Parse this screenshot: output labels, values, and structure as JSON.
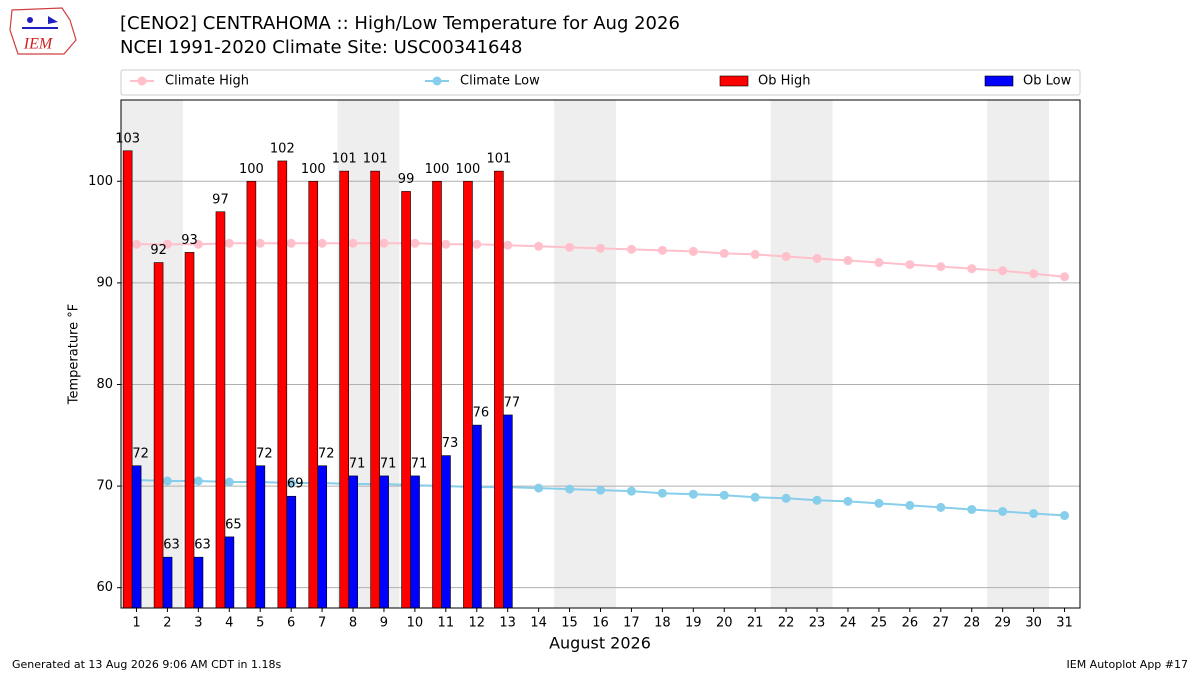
{
  "logo_text": "IEM",
  "footer_left": "Generated at 13 Aug 2026 9:06 AM CDT in 1.18s",
  "footer_right": "IEM Autoplot App #17",
  "chart_data": {
    "type": "bar",
    "title": "[CENO2] CENTRAHOMA :: High/Low Temperature for Aug 2026",
    "subtitle": "NCEI 1991-2020 Climate Site: USC00341648",
    "x_label": "August 2026",
    "y_label": "Temperature °F",
    "x": [
      1,
      2,
      3,
      4,
      5,
      6,
      7,
      8,
      9,
      10,
      11,
      12,
      13,
      14,
      15,
      16,
      17,
      18,
      19,
      20,
      21,
      22,
      23,
      24,
      25,
      26,
      27,
      28,
      29,
      30,
      31
    ],
    "xlim": [
      0.5,
      31.5
    ],
    "xticks": [
      1,
      2,
      3,
      4,
      5,
      6,
      7,
      8,
      9,
      10,
      11,
      12,
      13,
      14,
      15,
      16,
      17,
      18,
      19,
      20,
      21,
      22,
      23,
      24,
      25,
      26,
      27,
      28,
      29,
      30,
      31
    ],
    "ylim": [
      58,
      108
    ],
    "yticks": [
      60,
      70,
      80,
      90,
      100
    ],
    "grid": true,
    "weekend_spans": [
      [
        0.5,
        2.5
      ],
      [
        7.5,
        9.5
      ],
      [
        14.5,
        16.5
      ],
      [
        21.5,
        23.5
      ],
      [
        28.5,
        30.5
      ]
    ],
    "weekend_color": "#eeeeee",
    "series": [
      {
        "name": "Climate High",
        "type": "line",
        "color": "#ffc0cb",
        "values": [
          93.8,
          93.8,
          93.8,
          93.9,
          93.9,
          93.9,
          93.9,
          93.9,
          93.9,
          93.9,
          93.8,
          93.8,
          93.7,
          93.6,
          93.5,
          93.4,
          93.3,
          93.2,
          93.1,
          92.9,
          92.8,
          92.6,
          92.4,
          92.2,
          92.0,
          91.8,
          91.6,
          91.4,
          91.2,
          90.9,
          90.6
        ]
      },
      {
        "name": "Climate Low",
        "type": "line",
        "color": "#87ceeb",
        "values": [
          70.6,
          70.5,
          70.5,
          70.4,
          70.4,
          70.3,
          70.3,
          70.2,
          70.2,
          70.1,
          70.0,
          69.9,
          69.9,
          69.8,
          69.7,
          69.6,
          69.5,
          69.3,
          69.2,
          69.1,
          68.9,
          68.8,
          68.6,
          68.5,
          68.3,
          68.1,
          67.9,
          67.7,
          67.5,
          67.3,
          67.1
        ]
      },
      {
        "name": "Ob High",
        "type": "bar",
        "color": "#ff0000",
        "values": [
          103,
          92,
          93,
          97,
          100,
          102,
          100,
          101,
          101,
          99,
          100,
          100,
          101,
          null,
          null,
          null,
          null,
          null,
          null,
          null,
          null,
          null,
          null,
          null,
          null,
          null,
          null,
          null,
          null,
          null,
          null
        ]
      },
      {
        "name": "Ob Low",
        "type": "bar",
        "color": "#0000ff",
        "values": [
          72,
          63,
          63,
          65,
          72,
          69,
          72,
          71,
          71,
          71,
          73,
          76,
          77,
          null,
          null,
          null,
          null,
          null,
          null,
          null,
          null,
          null,
          null,
          null,
          null,
          null,
          null,
          null,
          null,
          null,
          null
        ]
      }
    ]
  }
}
